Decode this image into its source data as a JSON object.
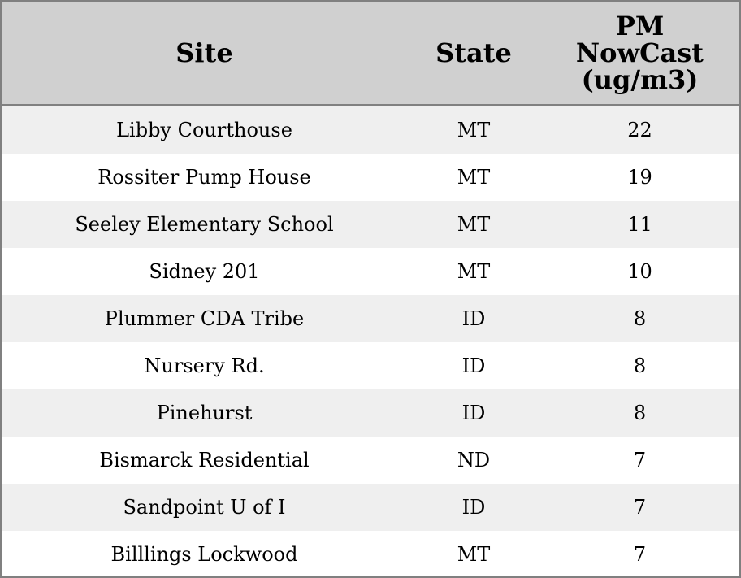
{
  "chart_data": {
    "type": "table",
    "columns": [
      "Site",
      "State",
      "PM NowCast (ug/m3)"
    ],
    "header_lines": {
      "pm": [
        "PM",
        "NowCast",
        "(ug/m3)"
      ]
    },
    "rows": [
      [
        "Libby Courthouse",
        "MT",
        "22"
      ],
      [
        "Rossiter Pump House",
        "MT",
        "19"
      ],
      [
        "Seeley Elementary School",
        "MT",
        "11"
      ],
      [
        "Sidney 201",
        "MT",
        "10"
      ],
      [
        "Plummer CDA Tribe",
        "ID",
        "8"
      ],
      [
        "Nursery Rd.",
        "ID",
        "8"
      ],
      [
        "Pinehurst",
        "ID",
        "8"
      ],
      [
        "Bismarck Residential",
        "ND",
        "7"
      ],
      [
        "Sandpoint U of I",
        "ID",
        "7"
      ],
      [
        "Billlings Lockwood",
        "MT",
        "7"
      ]
    ],
    "colors": {
      "header_bg": "#d0d0d0",
      "stripe": "#efefef",
      "border": "#808080"
    }
  }
}
